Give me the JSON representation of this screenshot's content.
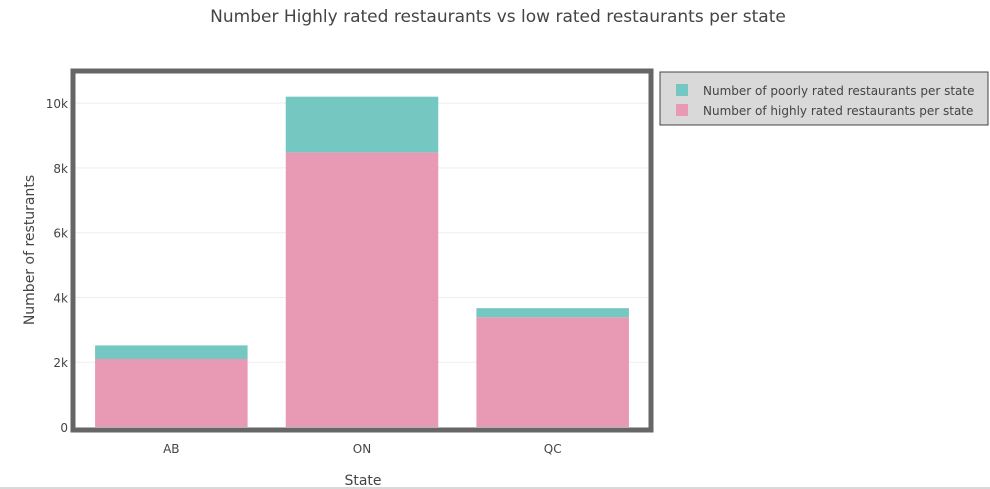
{
  "chart_data": {
    "type": "bar",
    "barmode": "stack",
    "title": "Number Highly rated restaurants vs low rated restaurants per state",
    "xlabel": "State",
    "ylabel": "Number of resturants",
    "categories": [
      "AB",
      "ON",
      "QC"
    ],
    "series": [
      {
        "name": "Number of highly rated restaurants per state",
        "values": [
          2100,
          8480,
          3390
        ],
        "color": "#e899b4"
      },
      {
        "name": "Number of poorly rated restaurants per state",
        "values": [
          420,
          1720,
          280
        ],
        "color": "#74c8c1"
      }
    ],
    "ylim": [
      0,
      10900
    ],
    "y_ticks": [
      0,
      2000,
      4000,
      6000,
      8000,
      10000
    ],
    "y_tick_labels": [
      "0",
      "2k",
      "4k",
      "6k",
      "8k",
      "10k"
    ],
    "legend": {
      "position": "top-right",
      "entries": [
        {
          "label": "Number of poorly rated restaurants per state",
          "color": "#74c8c1"
        },
        {
          "label": "Number of highly rated restaurants per state",
          "color": "#e899b4"
        }
      ]
    },
    "grid": true
  }
}
